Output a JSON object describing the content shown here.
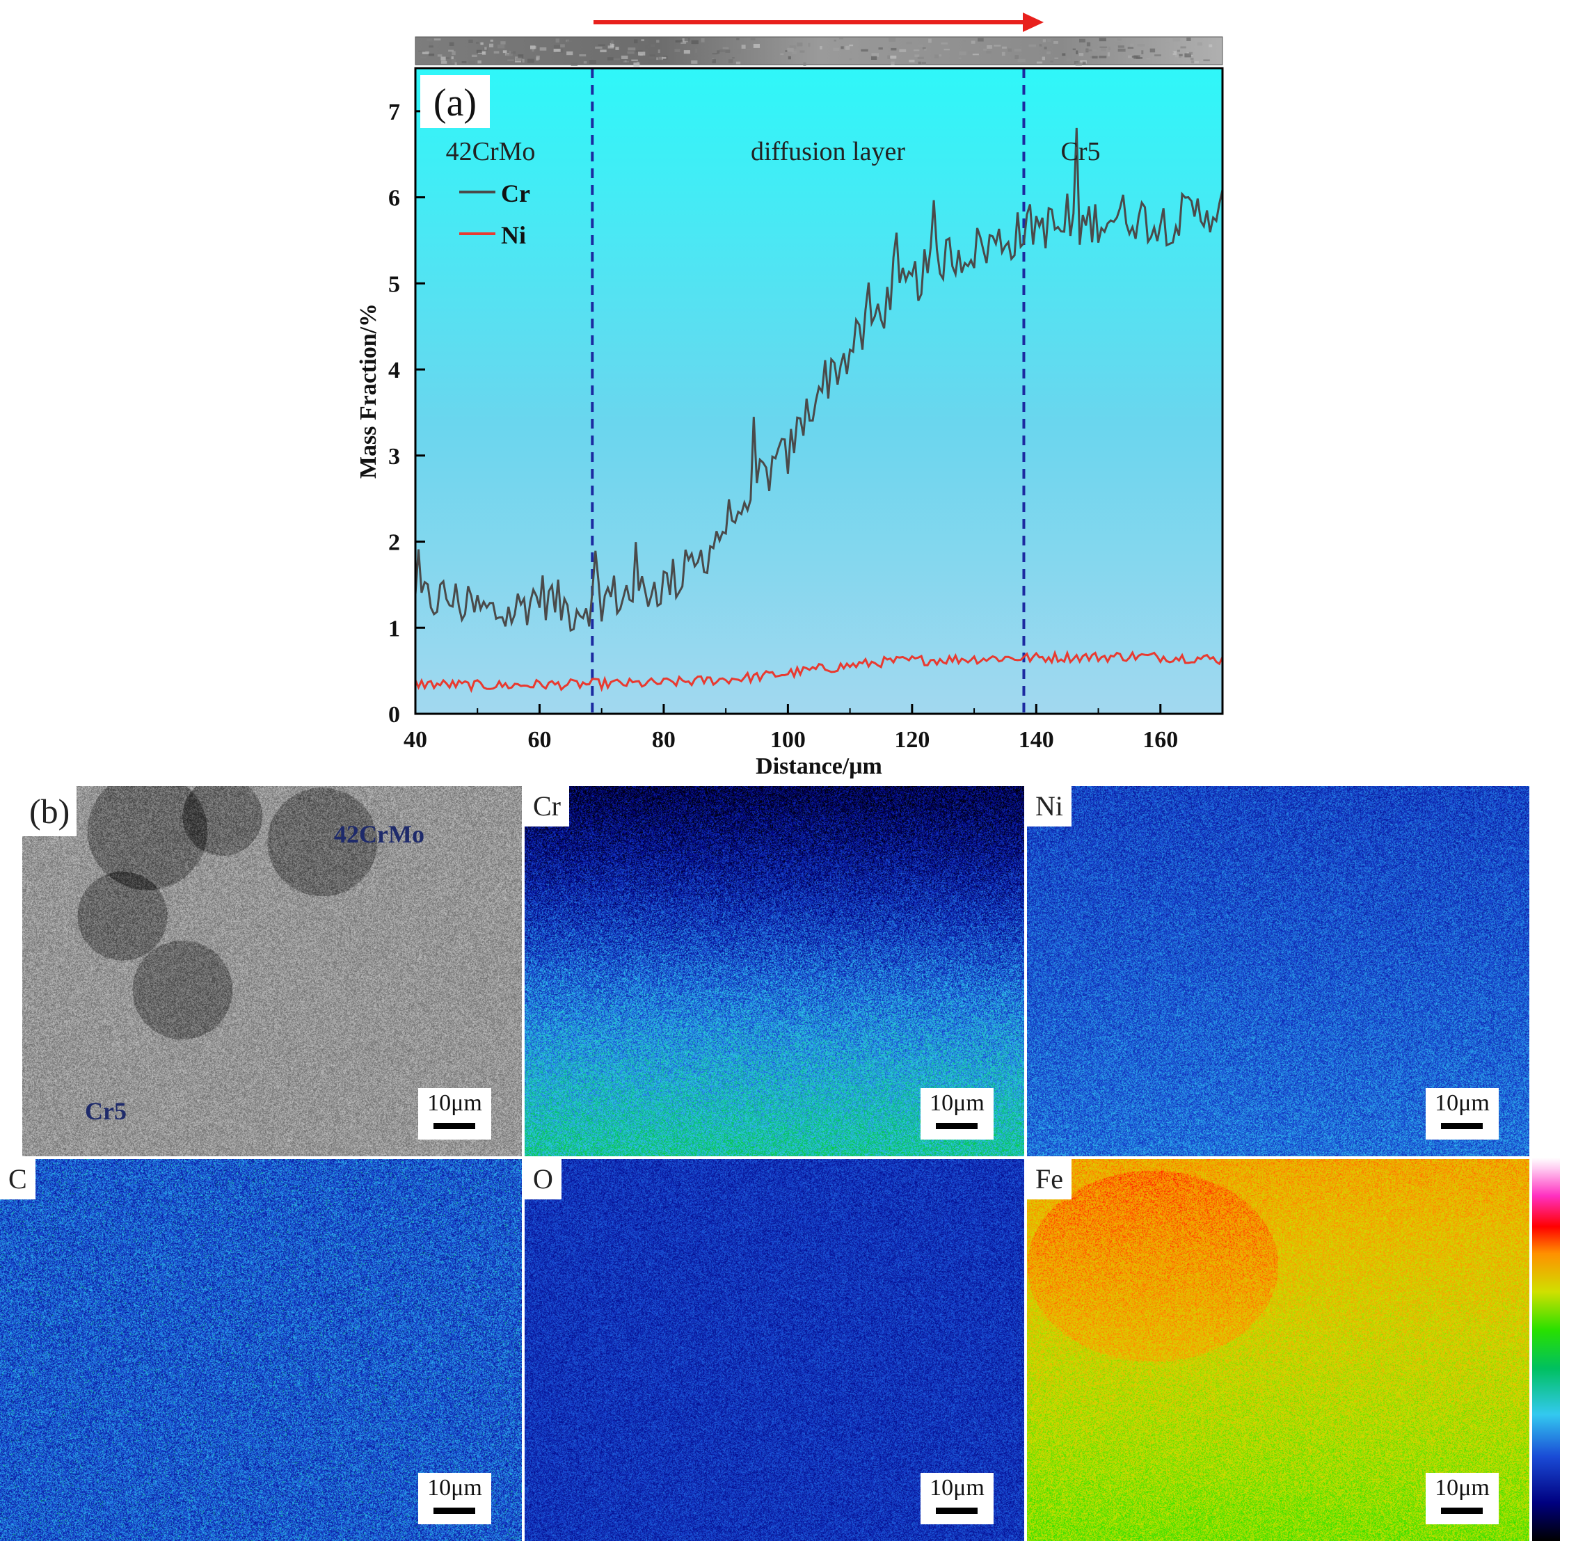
{
  "figure": {
    "panel_a_label": "(a)",
    "panel_b_label": "(b)"
  },
  "chart_data": {
    "type": "line",
    "panel": "(a)",
    "xlabel": "Distance/μm",
    "ylabel": "Mass Fraction/%",
    "xlim": [
      40,
      170
    ],
    "ylim": [
      0,
      7.5
    ],
    "x_ticks": [
      40,
      60,
      80,
      100,
      120,
      140,
      160
    ],
    "y_ticks": [
      0,
      1,
      2,
      3,
      4,
      5,
      6,
      7
    ],
    "boundaries": [
      68.5,
      138
    ],
    "regions": [
      "42CrMo",
      "diffusion layer",
      "Cr5"
    ],
    "arrow_direction": "left-to-right",
    "series": [
      {
        "name": "Cr",
        "color": "#4a4a4a",
        "x": [
          40,
          45,
          50,
          55,
          60,
          65,
          70,
          75,
          80,
          85,
          90,
          95,
          100,
          105,
          110,
          115,
          120,
          125,
          130,
          135,
          140,
          145,
          150,
          155,
          160,
          165,
          170
        ],
        "values": [
          1.3,
          1.35,
          1.2,
          1.15,
          1.4,
          1.2,
          1.35,
          1.4,
          1.5,
          1.7,
          2.2,
          2.7,
          3.0,
          3.8,
          4.2,
          4.7,
          5.0,
          5.3,
          5.4,
          5.5,
          5.7,
          5.6,
          5.75,
          5.8,
          5.7,
          5.8,
          5.9
        ]
      },
      {
        "name": "Ni",
        "color": "#e83a30",
        "x": [
          40,
          45,
          50,
          55,
          60,
          65,
          70,
          75,
          80,
          85,
          90,
          95,
          100,
          105,
          110,
          115,
          120,
          125,
          130,
          135,
          140,
          145,
          150,
          155,
          160,
          165,
          170
        ],
        "values": [
          0.35,
          0.34,
          0.33,
          0.33,
          0.34,
          0.34,
          0.35,
          0.35,
          0.36,
          0.38,
          0.4,
          0.43,
          0.47,
          0.52,
          0.56,
          0.6,
          0.62,
          0.63,
          0.64,
          0.65,
          0.65,
          0.66,
          0.66,
          0.67,
          0.66,
          0.65,
          0.63
        ]
      }
    ]
  },
  "maps": {
    "sem": {
      "tag_top": "42CrMo",
      "tag_bottom": "Cr5",
      "scale": "10μm"
    },
    "cr": {
      "label": "Cr",
      "scale": "10μm"
    },
    "ni": {
      "label": "Ni",
      "scale": "10μm"
    },
    "c": {
      "label": "C",
      "scale": "10μm"
    },
    "o": {
      "label": "O",
      "scale": "10μm"
    },
    "fe": {
      "label": "Fe",
      "scale": "10μm"
    }
  }
}
